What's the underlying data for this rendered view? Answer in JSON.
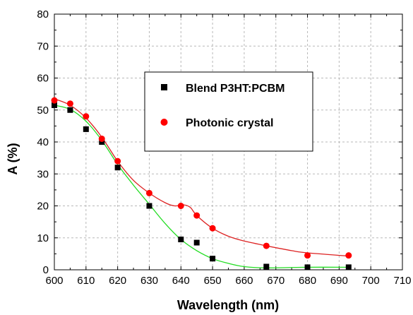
{
  "chart_data": {
    "type": "scatter",
    "title": "",
    "xlabel": "Wavelength (nm)",
    "ylabel": "A (%)",
    "xlim": [
      600,
      710
    ],
    "ylim": [
      0,
      80
    ],
    "xticks": [
      600,
      610,
      620,
      630,
      640,
      650,
      660,
      670,
      680,
      690,
      700,
      710
    ],
    "yticks": [
      0,
      10,
      20,
      30,
      40,
      50,
      60,
      70,
      80
    ],
    "grid": true,
    "legend_position": "upper-center",
    "series": [
      {
        "name": "Blend P3HT:PCBM",
        "marker": "square",
        "color": "#000000",
        "fit_color": "#22dd22",
        "x": [
          600,
          605,
          610,
          615,
          620,
          630,
          640,
          645,
          650,
          667,
          680,
          693
        ],
        "y": [
          51.5,
          50,
          44,
          40,
          32,
          20,
          9.5,
          8.5,
          3.5,
          1,
          0.8,
          0.8
        ],
        "fit": [
          [
            600,
            51.5
          ],
          [
            605,
            50.2
          ],
          [
            610,
            46.5
          ],
          [
            615,
            40.5
          ],
          [
            620,
            33
          ],
          [
            625,
            26.5
          ],
          [
            630,
            20.5
          ],
          [
            635,
            14.5
          ],
          [
            640,
            9.5
          ],
          [
            645,
            6
          ],
          [
            650,
            3.5
          ],
          [
            655,
            2
          ],
          [
            660,
            1
          ],
          [
            667,
            0.6
          ],
          [
            680,
            0.8
          ],
          [
            693,
            0.8
          ]
        ]
      },
      {
        "name": "Photonic crystal",
        "marker": "circle",
        "color": "#ff0000",
        "fit_color": "#dd2222",
        "x": [
          600,
          605,
          610,
          615,
          620,
          630,
          640,
          645,
          650,
          667,
          680,
          693
        ],
        "y": [
          53,
          52,
          48,
          41,
          34,
          24,
          20,
          17,
          13,
          7.5,
          4.5,
          4.5
        ],
        "fit": [
          [
            600,
            53.5
          ],
          [
            605,
            51.5
          ],
          [
            610,
            47.5
          ],
          [
            615,
            41.5
          ],
          [
            620,
            34
          ],
          [
            625,
            28
          ],
          [
            630,
            24
          ],
          [
            635,
            21
          ],
          [
            638,
            20
          ],
          [
            641,
            20.3
          ],
          [
            643,
            19.5
          ],
          [
            645,
            17
          ],
          [
            650,
            13
          ],
          [
            655,
            10.5
          ],
          [
            660,
            9
          ],
          [
            667,
            7.5
          ],
          [
            675,
            6
          ],
          [
            680,
            5.3
          ],
          [
            693,
            4.3
          ]
        ]
      }
    ]
  }
}
